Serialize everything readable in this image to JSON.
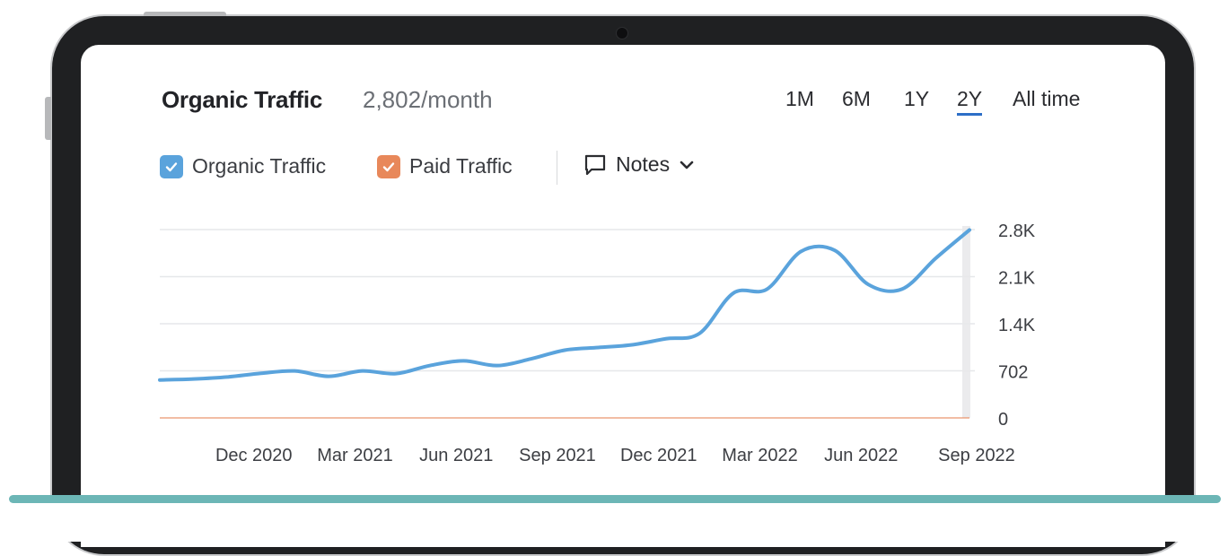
{
  "header": {
    "title": "Organic Traffic",
    "value": "2,802/month",
    "ranges": [
      "1M",
      "6M",
      "1Y",
      "2Y",
      "All time"
    ],
    "active_range": "2Y"
  },
  "legend": {
    "organic_label": "Organic Traffic",
    "paid_label": "Paid Traffic",
    "notes_label": "Notes"
  },
  "colors": {
    "organic": "#5aa3dc",
    "paid": "#e8885a",
    "accent": "#2d6fc7"
  },
  "chart_data": {
    "type": "line",
    "x_tick_labels": [
      "Dec 2020",
      "Mar 2021",
      "Jun 2021",
      "Sep 2021",
      "Dec 2021",
      "Mar 2022",
      "Jun 2022",
      "Sep 2022"
    ],
    "y_tick_labels": [
      "0",
      "702",
      "1.4K",
      "2.1K",
      "2.8K"
    ],
    "y_tick_values": [
      0,
      702,
      1404,
      2106,
      2808
    ],
    "ylim": [
      0,
      2808
    ],
    "x_range": [
      "2020-09",
      "2022-09"
    ],
    "grid": true,
    "series": [
      {
        "name": "Organic Traffic",
        "x": [
          "2020-09",
          "2020-10",
          "2020-11",
          "2020-12",
          "2021-01",
          "2021-02",
          "2021-03",
          "2021-04",
          "2021-05",
          "2021-06",
          "2021-07",
          "2021-08",
          "2021-09",
          "2021-10",
          "2021-11",
          "2021-12",
          "2022-01",
          "2022-02",
          "2022-03",
          "2022-04",
          "2022-05",
          "2022-06",
          "2022-07",
          "2022-08",
          "2022-09"
        ],
        "values": [
          565,
          580,
          610,
          665,
          700,
          620,
          700,
          660,
          780,
          850,
          780,
          880,
          1010,
          1050,
          1090,
          1180,
          1260,
          1860,
          1920,
          2480,
          2500,
          1990,
          1920,
          2380,
          2802
        ]
      },
      {
        "name": "Paid Traffic",
        "x": [
          "2020-09",
          "2022-09"
        ],
        "values": [
          0,
          0
        ]
      }
    ]
  }
}
